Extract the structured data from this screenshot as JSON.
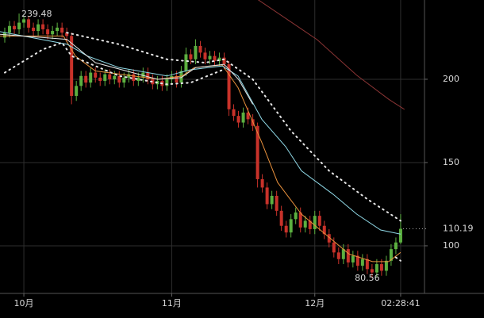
{
  "chart_data": {
    "type": "candlestick",
    "x": [
      -4,
      -3,
      -2,
      -1,
      0,
      1,
      2,
      3,
      4,
      5,
      6,
      7,
      8,
      9,
      10,
      11,
      12,
      13,
      14,
      15,
      16,
      17,
      18,
      19,
      20,
      21,
      22,
      23,
      24,
      25,
      26,
      27,
      28,
      29,
      30,
      31,
      32,
      33,
      34,
      35,
      36,
      37,
      38,
      39,
      40,
      41,
      42,
      43,
      44,
      45,
      46,
      47,
      48,
      49,
      50,
      51,
      52,
      53,
      54,
      55,
      56,
      57,
      58,
      59,
      60,
      61,
      62,
      63,
      64,
      65,
      66,
      67,
      68,
      69,
      70,
      71,
      72,
      73,
      74,
      75,
      76,
      77,
      78,
      79
    ],
    "open": [
      225,
      228,
      232,
      230,
      234,
      236,
      231,
      229,
      233,
      230,
      227,
      229,
      231,
      228,
      226,
      190,
      196,
      202,
      198,
      204,
      201,
      199,
      203,
      200,
      202,
      198,
      201,
      203,
      199,
      201,
      204,
      200,
      197,
      199,
      196,
      200,
      202,
      198,
      205,
      215,
      212,
      220,
      216,
      212,
      214,
      211,
      213,
      209,
      182,
      178,
      174,
      180,
      176,
      172,
      140,
      135,
      125,
      130,
      121,
      112,
      108,
      116,
      120,
      111,
      115,
      110,
      118,
      112,
      107,
      102,
      96,
      92,
      98,
      90,
      94,
      88,
      92,
      86,
      84,
      89,
      85,
      91,
      98,
      102
    ],
    "high": [
      231,
      235,
      235,
      239.48,
      238,
      238,
      234,
      236,
      236,
      233,
      232,
      234,
      234,
      231,
      228,
      199,
      205,
      205,
      207,
      207,
      204,
      206,
      206,
      205,
      205,
      204,
      206,
      206,
      204,
      207,
      207,
      203,
      202,
      202,
      203,
      205,
      205,
      208,
      219,
      218,
      224,
      223,
      219,
      217,
      217,
      216,
      216,
      211,
      185,
      181,
      183,
      183,
      179,
      174,
      143,
      138,
      133,
      133,
      124,
      115,
      119,
      123,
      123,
      118,
      118,
      121,
      121,
      115,
      110,
      105,
      99,
      101,
      101,
      97,
      97,
      95,
      95,
      89,
      92,
      92,
      94,
      101,
      105,
      119
    ],
    "low": [
      222,
      225,
      227,
      227,
      231,
      228,
      226,
      226,
      227,
      224,
      224,
      226,
      225,
      223,
      185,
      187,
      193,
      195,
      195,
      198,
      196,
      196,
      197,
      197,
      195,
      195,
      198,
      196,
      196,
      198,
      197,
      194,
      194,
      193,
      193,
      197,
      195,
      195,
      202,
      209,
      209,
      213,
      209,
      209,
      208,
      208,
      206,
      178,
      175,
      171,
      171,
      173,
      169,
      135,
      132,
      122,
      122,
      118,
      109,
      105,
      105,
      113,
      108,
      108,
      107,
      107,
      109,
      104,
      99,
      93,
      89,
      89,
      87,
      87,
      85,
      85,
      83,
      80.56,
      81,
      82,
      82,
      88,
      95,
      101
    ],
    "close": [
      228,
      232,
      230,
      234,
      236,
      231,
      229,
      233,
      230,
      227,
      229,
      231,
      228,
      226,
      190,
      196,
      202,
      198,
      204,
      201,
      199,
      203,
      200,
      202,
      198,
      201,
      203,
      199,
      201,
      204,
      200,
      197,
      199,
      196,
      200,
      202,
      198,
      205,
      215,
      212,
      220,
      216,
      212,
      214,
      211,
      213,
      209,
      182,
      178,
      174,
      180,
      176,
      172,
      140,
      135,
      125,
      130,
      121,
      112,
      108,
      116,
      120,
      111,
      115,
      110,
      118,
      112,
      107,
      102,
      96,
      92,
      98,
      90,
      94,
      88,
      92,
      86,
      84,
      89,
      85,
      91,
      98,
      102,
      110.19
    ],
    "up_color": "#5cb040",
    "down_color": "#c8322a",
    "lines": [
      {
        "color": "#e8903c",
        "style": "solid",
        "x": [
          -5,
          8.3,
          10.8,
          15,
          28.3,
          33.2,
          35.7,
          41.6,
          44.9,
          49.9,
          53.2,
          58.2,
          63.2,
          68.2,
          73.1,
          76.5,
          79
        ],
        "values": [
          226,
          226,
          214,
          205,
          200,
          202,
          207,
          208.6,
          195,
          162,
          138,
          119,
          107,
          95,
          90.5,
          90.5,
          96
        ]
      },
      {
        "color": "#8fd8e6",
        "style": "solid",
        "x": [
          -5,
          9.1,
          13.3,
          20,
          30,
          34.9,
          41.6,
          44.9,
          49.9,
          54.9,
          58.2,
          64.8,
          69.8,
          74.8,
          79
        ],
        "values": [
          228.6,
          221,
          214,
          207,
          202,
          205.7,
          208,
          202,
          176,
          159.5,
          145,
          131,
          119,
          109.5,
          107
        ]
      },
      {
        "color": "#e6e6e6",
        "style": "solid",
        "x": [
          -5,
          9,
          15,
          28,
          33,
          36,
          42,
          45,
          48
        ],
        "values": [
          227,
          224,
          210,
          200,
          201,
          207,
          209,
          200,
          185
        ]
      },
      {
        "color": "#8a3434",
        "style": "solid",
        "x": [
          49,
          61.5,
          69.8,
          76.5,
          79.8
        ],
        "values": [
          248,
          223.8,
          202.4,
          188,
          181.9
        ]
      },
      {
        "color": "#e6e6e6",
        "style": "dotted",
        "x": [
          9,
          20,
          30,
          38,
          42,
          48,
          56,
          64,
          72,
          79
        ],
        "values": [
          228,
          221,
          212,
          210,
          212,
          200,
          169,
          145,
          128,
          115
        ]
      },
      {
        "color": "#e6e6e6",
        "style": "dotted",
        "x": [
          -4,
          4,
          8,
          10,
          20,
          30,
          35,
          42,
          43,
          78,
          79
        ],
        "values": [
          204,
          218,
          222,
          214,
          202,
          197,
          198,
          206,
          null,
          93,
          91
        ]
      }
    ],
    "xlim": [
      -5,
      84
    ],
    "ylim": [
      71.4,
      247.6
    ],
    "yticks": [
      100,
      150,
      200
    ],
    "xticks": [
      {
        "value": 0,
        "label": "10月"
      },
      {
        "value": 31,
        "label": "11月"
      },
      {
        "value": 61,
        "label": "12月"
      },
      {
        "value": 79,
        "label": "02:28:41"
      }
    ],
    "grid": true
  }
}
